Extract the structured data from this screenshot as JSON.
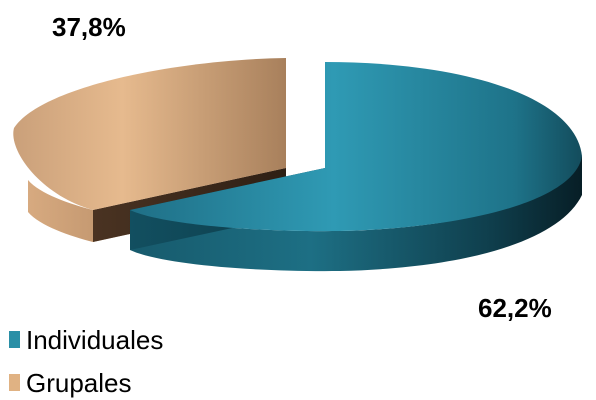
{
  "chart_data": {
    "type": "pie",
    "title": "",
    "categories": [
      "Individuales",
      "Grupales"
    ],
    "values": [
      62.2,
      37.8
    ],
    "value_labels": [
      "62,2%",
      "37,8%"
    ],
    "colors": [
      "#2a8fa6",
      "#e0b283"
    ],
    "legend": {
      "placement": "bottom-left",
      "entries": [
        "Individuales",
        "Grupales"
      ]
    },
    "style": "3d-exploded"
  }
}
